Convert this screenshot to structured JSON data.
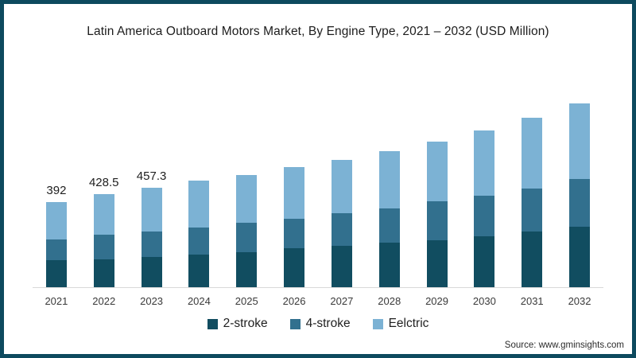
{
  "frame": {
    "border_color": "#0d4a5e",
    "background": "#ffffff"
  },
  "source": "Source: www.gminsights.com",
  "chart_data": {
    "type": "bar",
    "stacked": true,
    "title": "Latin America Outboard Motors Market, By Engine Type, 2021 – 2032 (USD Million)",
    "unit": "USD Million",
    "categories": [
      "2021",
      "2022",
      "2023",
      "2024",
      "2025",
      "2026",
      "2027",
      "2028",
      "2029",
      "2030",
      "2031",
      "2032"
    ],
    "series": [
      {
        "name": "2-stroke",
        "color": "#114d60",
        "values": [
          124,
          130,
          141,
          150,
          160,
          178,
          190,
          204,
          215,
          233,
          255,
          277
        ]
      },
      {
        "name": "4-stroke",
        "color": "#32708e",
        "values": [
          96,
          113,
          117,
          124,
          135,
          139,
          150,
          157,
          179,
          190,
          201,
          223
        ]
      },
      {
        "name": "Eelctric",
        "color": "#7cb2d4",
        "values": [
          172,
          185.5,
          199.3,
          215,
          222,
          235,
          246,
          267,
          278,
          297,
          326,
          345
        ]
      }
    ],
    "totals": [
      392,
      428.5,
      457.3,
      489,
      517,
      552,
      586,
      628,
      672,
      720,
      782,
      845
    ],
    "total_labels": [
      "392",
      "428.5",
      "457.3",
      "",
      "",
      "",
      "",
      "",
      "",
      "",
      "",
      ""
    ],
    "xlabel": "",
    "ylabel": "",
    "ylim": [
      0,
      900
    ],
    "grid": false,
    "legend_position": "bottom"
  }
}
